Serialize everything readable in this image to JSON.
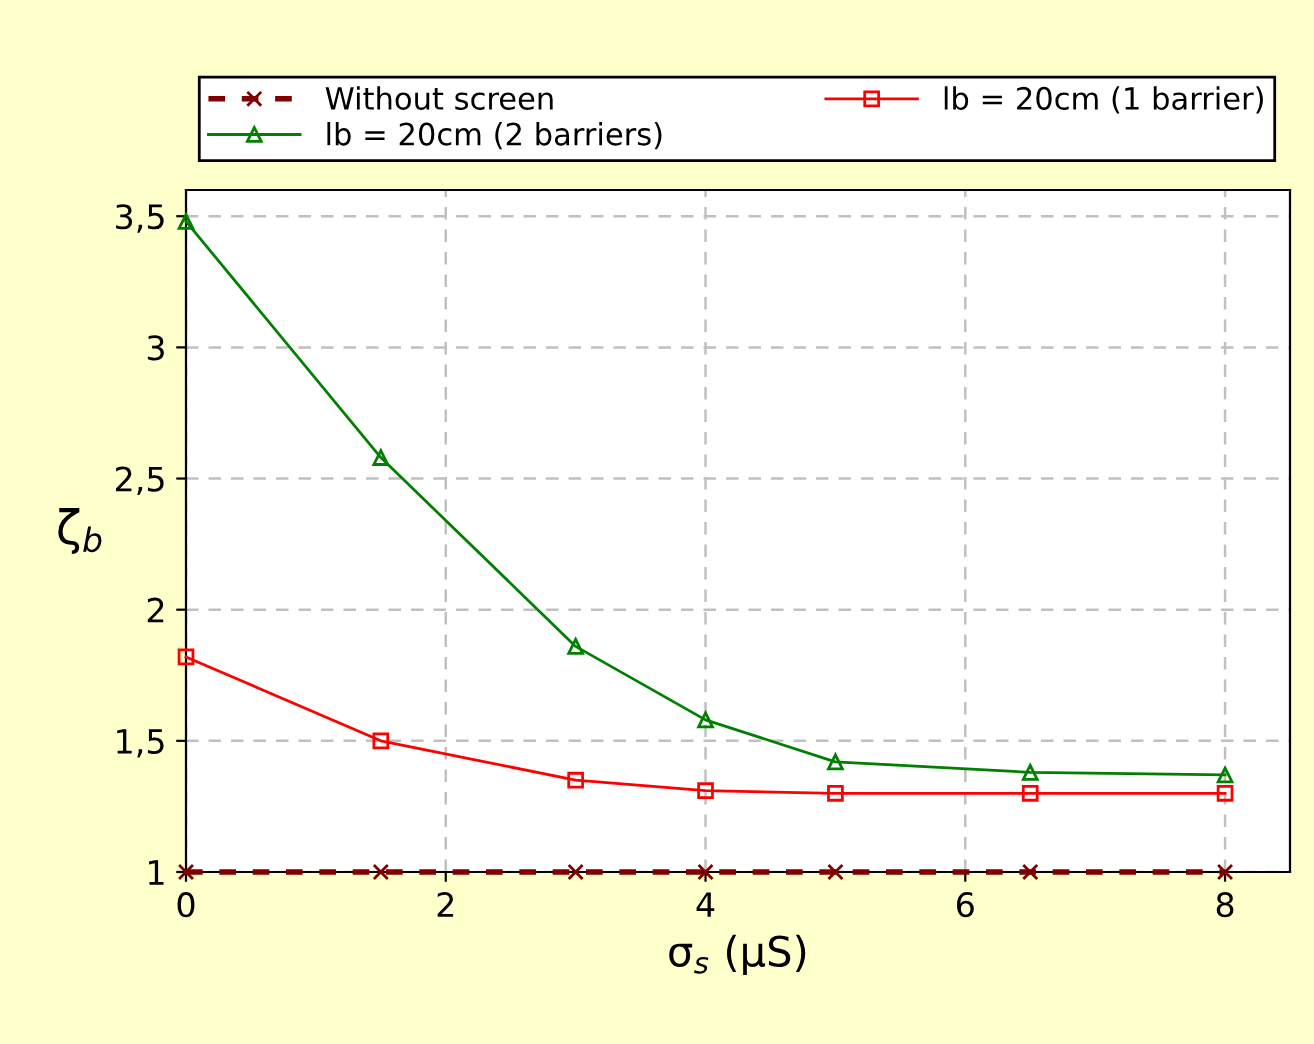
{
  "chart_data": {
    "type": "line",
    "xlabel": "σ$_{s}$ (μS)",
    "ylabel": "ζ$_{b}$",
    "x": [
      0,
      1.5,
      3,
      4,
      5,
      6.5,
      8
    ],
    "series": [
      {
        "name": "Without screen",
        "color": "#800000",
        "marker": "cross",
        "line_style": "dashed",
        "values": [
          1,
          1,
          1,
          1,
          1,
          1,
          1
        ]
      },
      {
        "name": "lb = 20cm (1 barrier)",
        "color": "#ff0000",
        "marker": "square",
        "line_style": "solid",
        "values": [
          1.82,
          1.5,
          1.35,
          1.31,
          1.3,
          1.3,
          1.3
        ]
      },
      {
        "name": "lb = 20cm (2 barriers)",
        "color": "#008000",
        "marker": "triangle",
        "line_style": "solid",
        "values": [
          3.48,
          2.58,
          1.86,
          1.58,
          1.42,
          1.38,
          1.37
        ]
      }
    ],
    "xlim": [
      0,
      8.5
    ],
    "ylim": [
      1,
      3.6
    ],
    "xticks": [
      0,
      2,
      4,
      6,
      8
    ],
    "yticks": [
      1,
      {
        "value": 1.5,
        "label": "1,5"
      },
      2,
      {
        "value": 2.5,
        "label": "2,5"
      },
      3,
      {
        "value": 3.5,
        "label": "3,5"
      }
    ],
    "grid": true,
    "legend": "top"
  }
}
